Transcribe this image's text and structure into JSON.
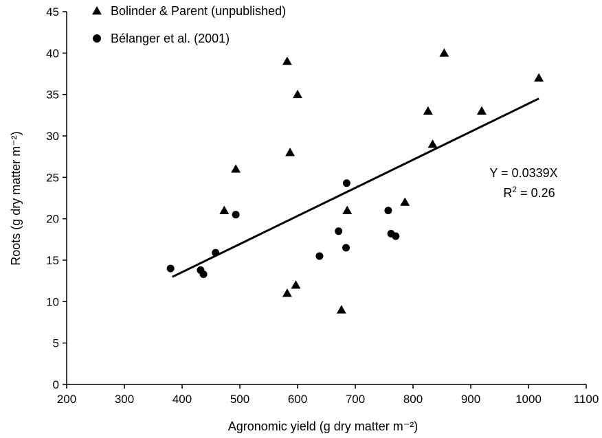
{
  "chart_data": {
    "type": "scatter",
    "title": "",
    "xlabel": "Agronomic yield (g dry matter m⁻²)",
    "ylabel": "Roots (g dry matter m⁻²)",
    "xlim": [
      200,
      1100
    ],
    "ylim": [
      0,
      45
    ],
    "xticks": [
      200,
      300,
      400,
      500,
      600,
      700,
      800,
      900,
      1000,
      1100
    ],
    "yticks": [
      0,
      5,
      10,
      15,
      20,
      25,
      30,
      35,
      40,
      45
    ],
    "grid": false,
    "legend_position": "top-left",
    "series": [
      {
        "name": "Bolinder & Parent (unpublished)",
        "marker": "triangle",
        "color": "#000000",
        "points": [
          {
            "x": 582,
            "y": 39
          },
          {
            "x": 600,
            "y": 35
          },
          {
            "x": 587,
            "y": 28
          },
          {
            "x": 493,
            "y": 26
          },
          {
            "x": 473,
            "y": 21
          },
          {
            "x": 686,
            "y": 21
          },
          {
            "x": 582,
            "y": 11
          },
          {
            "x": 597,
            "y": 12
          },
          {
            "x": 676,
            "y": 9
          },
          {
            "x": 786,
            "y": 22
          },
          {
            "x": 826,
            "y": 33
          },
          {
            "x": 834,
            "y": 29
          },
          {
            "x": 854,
            "y": 40
          },
          {
            "x": 919,
            "y": 33
          },
          {
            "x": 1018,
            "y": 37
          }
        ]
      },
      {
        "name": "Bélanger et al. (2001)",
        "marker": "circle",
        "color": "#000000",
        "points": [
          {
            "x": 380,
            "y": 14
          },
          {
            "x": 432,
            "y": 13.8
          },
          {
            "x": 437,
            "y": 13.3
          },
          {
            "x": 458,
            "y": 15.9
          },
          {
            "x": 493,
            "y": 20.5
          },
          {
            "x": 638,
            "y": 15.5
          },
          {
            "x": 671,
            "y": 18.5
          },
          {
            "x": 684,
            "y": 16.5
          },
          {
            "x": 685,
            "y": 24.3
          },
          {
            "x": 757,
            "y": 21
          },
          {
            "x": 762,
            "y": 18.2
          },
          {
            "x": 770,
            "y": 17.9
          }
        ]
      }
    ],
    "trendline": {
      "slope": 0.0339,
      "intercept": 0,
      "x_range": [
        383,
        1018
      ],
      "color": "#000000"
    },
    "annotations": {
      "equation": "Y = 0.0339X",
      "r_squared_prefix": "R",
      "r_squared_sup": "2",
      "r_squared_suffix": " = 0.26"
    }
  }
}
